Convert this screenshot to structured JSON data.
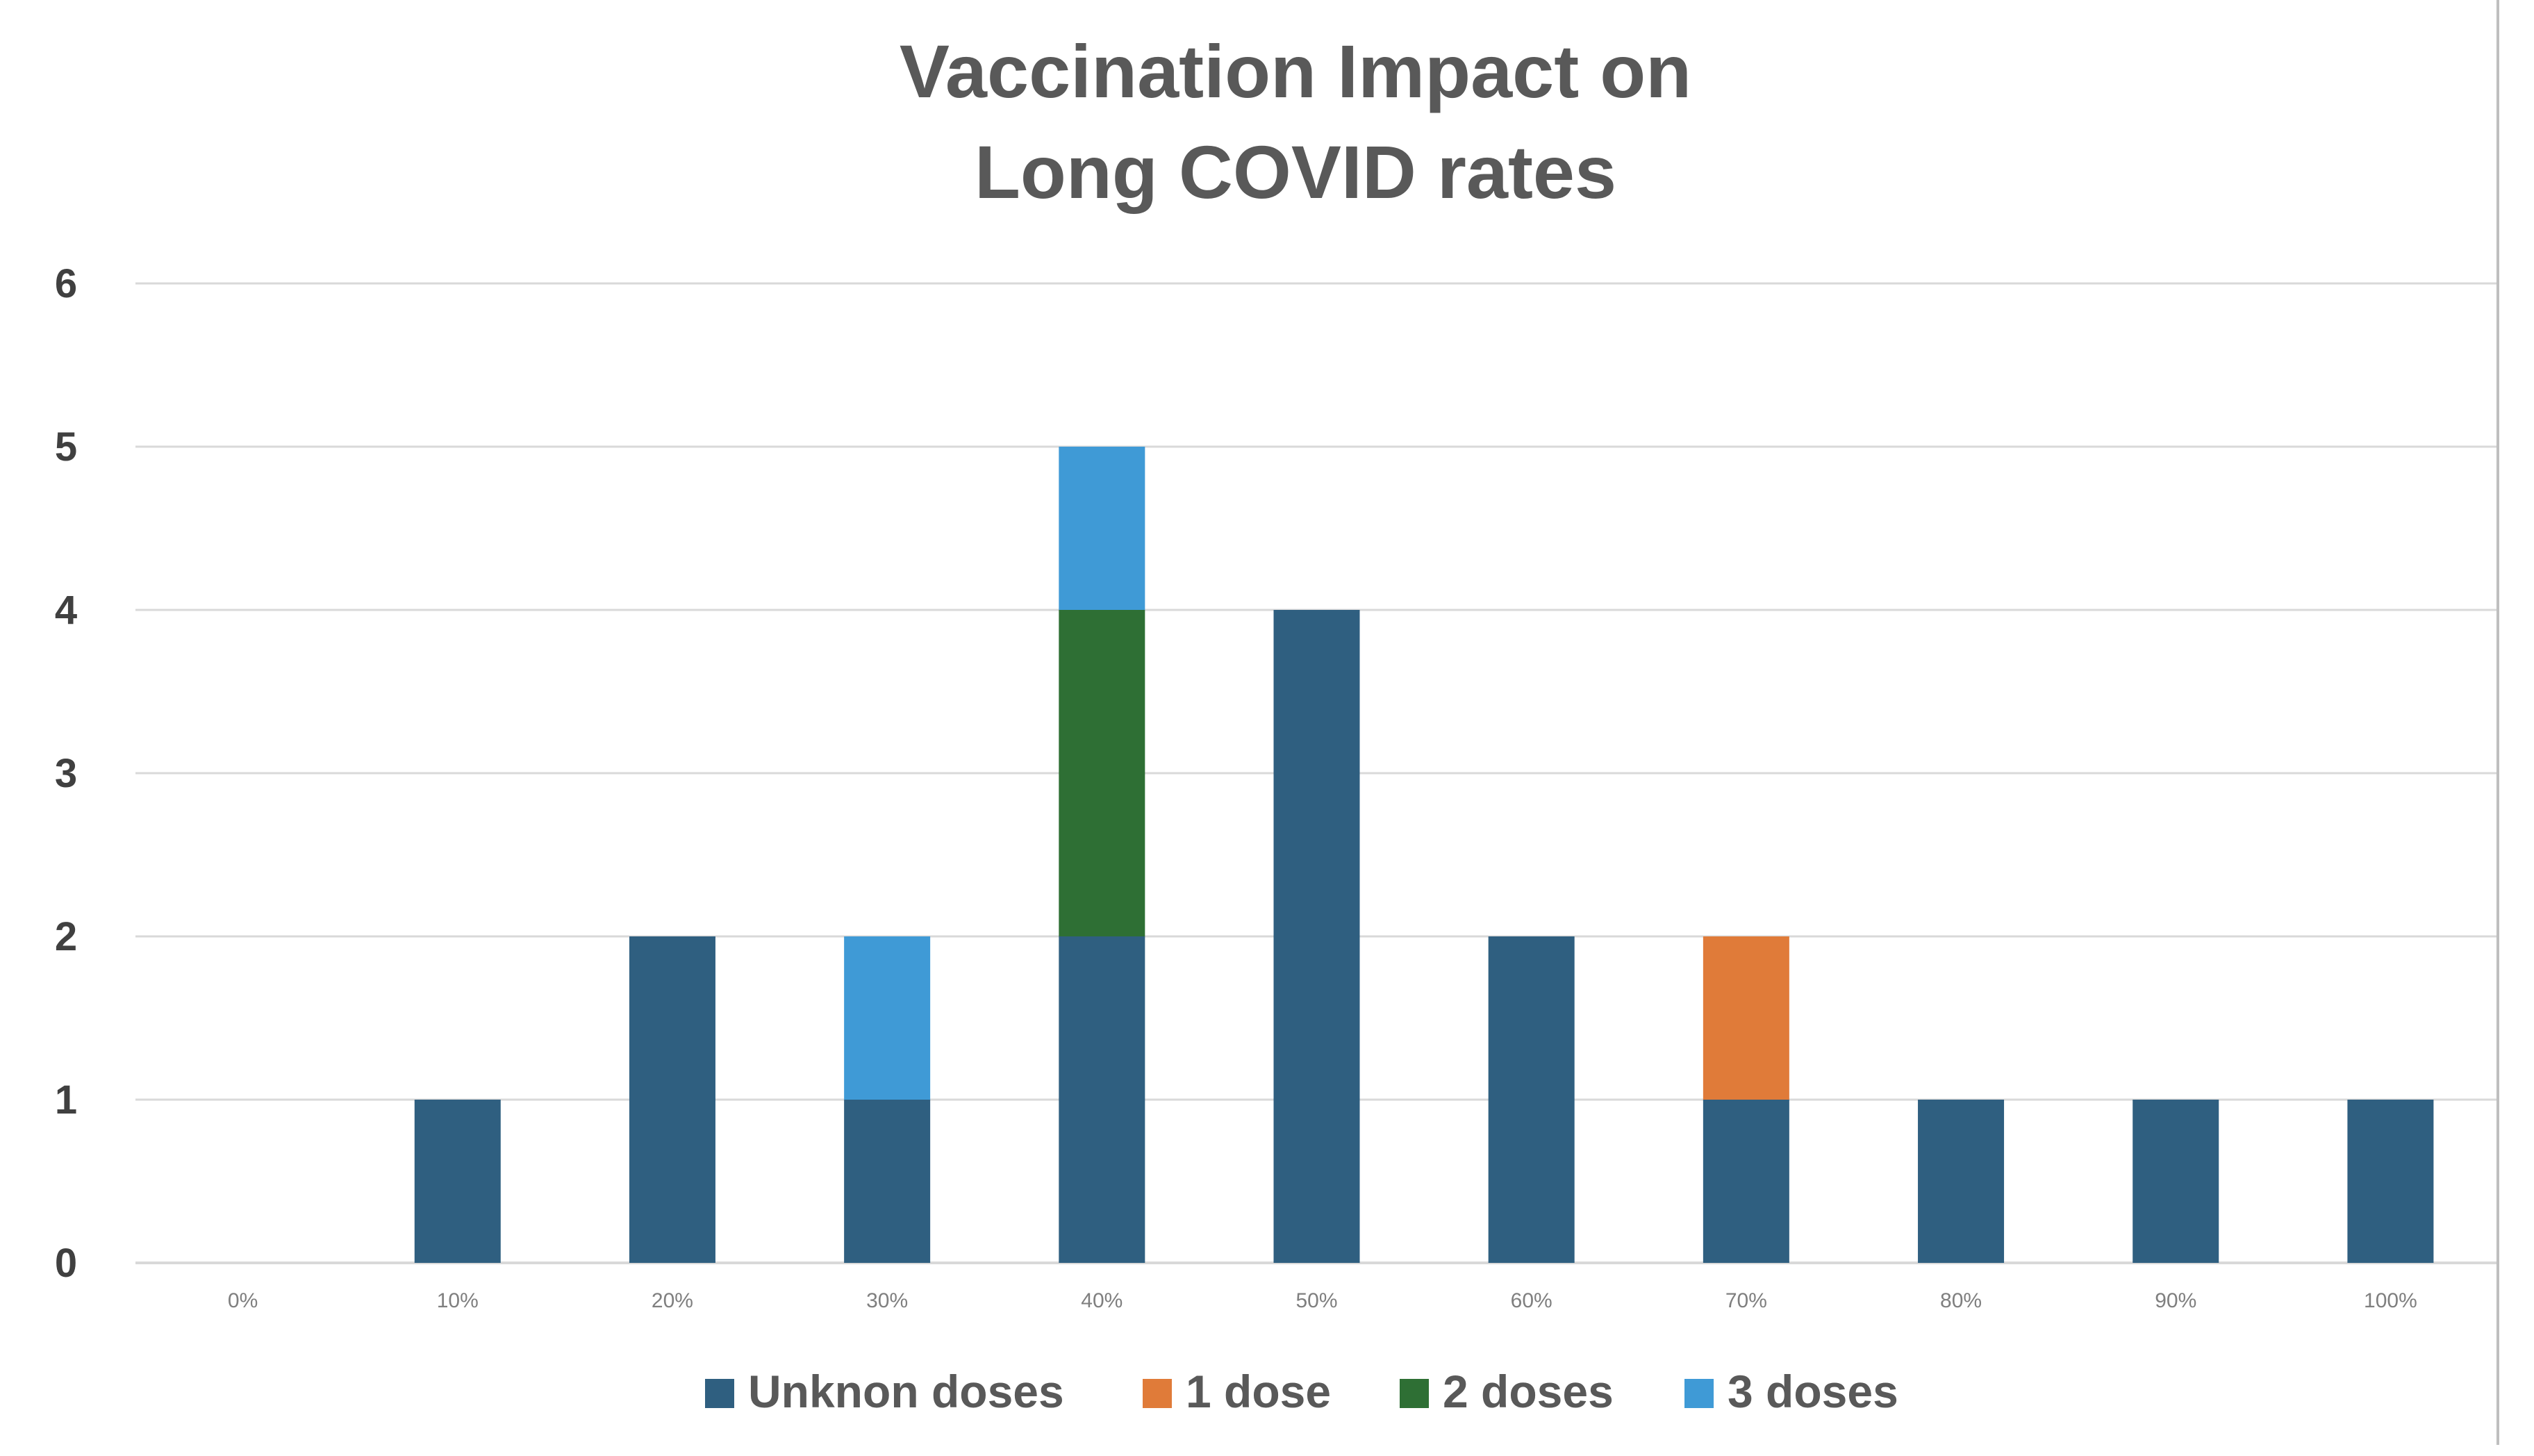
{
  "colors": {
    "unknown_doses": "#2f5f80",
    "one_dose": "#e07b39",
    "two_doses": "#2e6f34",
    "three_doses": "#3f9ad6"
  },
  "chart_data": {
    "type": "bar",
    "stacked": true,
    "title_lines": [
      "Vaccination Impact on",
      "Long COVID rates"
    ],
    "xlabel": "",
    "ylabel": "",
    "categories": [
      "0%",
      "10%",
      "20%",
      "30%",
      "40%",
      "50%",
      "60%",
      "70%",
      "80%",
      "90%",
      "100%"
    ],
    "ylim": [
      0,
      6
    ],
    "yticks": [
      "0",
      "1",
      "2",
      "3",
      "4",
      "5",
      "6"
    ],
    "grid": true,
    "legend_position": "bottom",
    "series": [
      {
        "name": "Unknon doses",
        "color_key": "unknown_doses",
        "values": [
          0,
          1,
          2,
          1,
          2,
          4,
          2,
          1,
          1,
          1,
          1
        ]
      },
      {
        "name": "1 dose",
        "color_key": "one_dose",
        "values": [
          0,
          0,
          0,
          0,
          0,
          0,
          0,
          1,
          0,
          0,
          0
        ]
      },
      {
        "name": "2 doses",
        "color_key": "two_doses",
        "values": [
          0,
          0,
          0,
          0,
          2,
          0,
          0,
          0,
          0,
          0,
          0
        ]
      },
      {
        "name": "3 doses",
        "color_key": "three_doses",
        "values": [
          0,
          0,
          0,
          1,
          1,
          0,
          0,
          0,
          0,
          0,
          0
        ]
      }
    ]
  }
}
